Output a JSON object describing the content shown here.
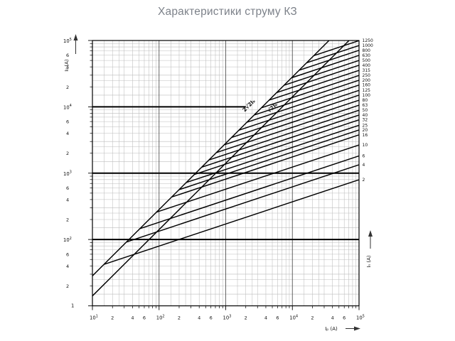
{
  "title": "Характеристики струму КЗ",
  "chart_data": {
    "type": "line",
    "title": "Характеристики струму КЗ",
    "x_axis": {
      "label": "Iₚ (A)",
      "scale": "log",
      "min": 10,
      "max": 100000,
      "decade_labels": [
        "10¹",
        "10²",
        "10³",
        "10⁴",
        "10⁵"
      ],
      "minor_labeled_multiples": [
        2,
        4,
        6
      ]
    },
    "y_axis": {
      "label": "I₀ (A)",
      "scale": "log",
      "min": 10,
      "max": 100000,
      "decade_labels": [
        "10⁵",
        "10⁴",
        "10³",
        "10²"
      ],
      "bottom_label": "1",
      "minor_labeled_multiples": [
        6,
        4,
        2
      ]
    },
    "right_axis_label": "Iₙ (A)",
    "grid": "log-log, minor gridlines light, decade lines dark",
    "emphasis_lines": [
      {
        "value": 10000,
        "from": 10,
        "to": 2000
      },
      {
        "value": 1000,
        "from": 10,
        "to": 100000
      },
      {
        "value": 100,
        "from": 10,
        "to": 100000
      }
    ],
    "reference_lines": [
      {
        "label": "2√2Iₖ",
        "points": [
          [
            10,
            28.3
          ],
          [
            35500,
            100000
          ]
        ],
        "label_pos": [
          352,
          150
        ]
      },
      {
        "label": "√2Iₖ",
        "points": [
          [
            10,
            14.1
          ],
          [
            70800,
            100000
          ]
        ],
        "label_pos": [
          385,
          153
        ]
      }
    ],
    "series": [
      {
        "rating": "1250",
        "points": [
          [
            21000,
            59100
          ],
          [
            100000,
            99500
          ]
        ]
      },
      {
        "rating": "1000",
        "points": [
          [
            16300,
            46000
          ],
          [
            100000,
            84100
          ]
        ]
      },
      {
        "rating": "800",
        "points": [
          [
            12700,
            35700
          ],
          [
            100000,
            71100
          ]
        ]
      },
      {
        "rating": "630",
        "points": [
          [
            9720,
            27400
          ],
          [
            100000,
            59600
          ]
        ]
      },
      {
        "rating": "500",
        "points": [
          [
            7470,
            21100
          ],
          [
            100000,
            50000
          ]
        ]
      },
      {
        "rating": "400",
        "points": [
          [
            5830,
            16400
          ],
          [
            100000,
            42400
          ]
        ]
      },
      {
        "rating": "315",
        "points": [
          [
            4450,
            12600
          ],
          [
            100000,
            35400
          ]
        ]
      },
      {
        "rating": "250",
        "points": [
          [
            3420,
            9650
          ],
          [
            100000,
            29700
          ]
        ]
      },
      {
        "rating": "200",
        "points": [
          [
            2670,
            7530
          ],
          [
            100000,
            25200
          ]
        ]
      },
      {
        "rating": "160",
        "points": [
          [
            2080,
            5850
          ],
          [
            100000,
            21300
          ]
        ]
      },
      {
        "rating": "125",
        "points": [
          [
            1570,
            4440
          ],
          [
            100000,
            17700
          ]
        ]
      },
      {
        "rating": "100",
        "points": [
          [
            1220,
            3450
          ],
          [
            100000,
            15000
          ]
        ]
      },
      {
        "rating": "80",
        "points": [
          [
            950,
            2680
          ],
          [
            100000,
            12600
          ]
        ]
      },
      {
        "rating": "63",
        "points": [
          [
            729,
            2050
          ],
          [
            100000,
            10600
          ]
        ]
      },
      {
        "rating": "50",
        "points": [
          [
            560,
            1580
          ],
          [
            100000,
            8890
          ]
        ]
      },
      {
        "rating": "40",
        "points": [
          [
            437,
            1230
          ],
          [
            100000,
            7530
          ]
        ]
      },
      {
        "rating": "32",
        "points": [
          [
            340,
            957
          ],
          [
            100000,
            6370
          ]
        ]
      },
      {
        "rating": "25",
        "points": [
          [
            257,
            724
          ],
          [
            100000,
            5280
          ]
        ]
      },
      {
        "rating": "20",
        "points": [
          [
            200,
            564
          ],
          [
            100000,
            4480
          ]
        ]
      },
      {
        "rating": "16",
        "points": [
          [
            156,
            438
          ],
          [
            100000,
            3780
          ]
        ]
      },
      {
        "rating": "10",
        "points": [
          [
            91.7,
            259
          ],
          [
            100000,
            2660
          ]
        ]
      },
      {
        "rating": "6",
        "points": [
          [
            51.7,
            146
          ],
          [
            100000,
            1820
          ]
        ]
      },
      {
        "rating": "4",
        "points": [
          [
            32.7,
            92
          ],
          [
            100000,
            1340
          ]
        ]
      },
      {
        "rating": "2",
        "points": [
          [
            15,
            42.3
          ],
          [
            100000,
            796
          ]
        ]
      }
    ],
    "colors": {
      "line": "#000000",
      "minor_grid": "#bdbdbd",
      "decade_grid": "#555555",
      "frame": "#000000",
      "title_text": "#7d828a"
    }
  }
}
